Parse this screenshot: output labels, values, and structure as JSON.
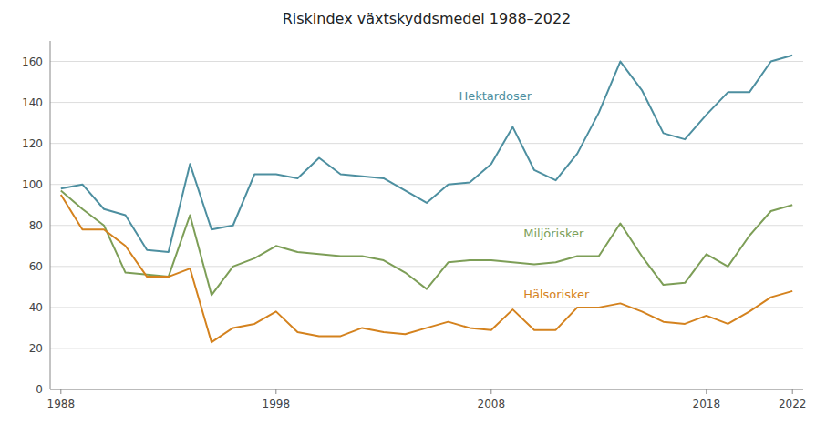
{
  "chart_data": {
    "type": "line",
    "title": "Riskindex växtskyddsmedel 1988–2022",
    "x": [
      1988,
      1989,
      1990,
      1991,
      1992,
      1993,
      1994,
      1995,
      1996,
      1997,
      1998,
      1999,
      2000,
      2001,
      2002,
      2003,
      2004,
      2005,
      2006,
      2007,
      2008,
      2009,
      2010,
      2011,
      2012,
      2013,
      2014,
      2015,
      2016,
      2017,
      2018,
      2019,
      2020,
      2021,
      2022
    ],
    "series": [
      {
        "name": "Hektardoser",
        "color": "#4d8fa0",
        "label_x": 2006.5,
        "label_y": 140,
        "values": [
          98,
          100,
          88,
          85,
          68,
          67,
          110,
          78,
          80,
          105,
          105,
          103,
          113,
          105,
          104,
          103,
          97,
          91,
          100,
          101,
          110,
          128,
          107,
          102,
          115,
          135,
          160,
          146,
          125,
          122,
          134,
          145,
          145,
          160,
          163
        ]
      },
      {
        "name": "Miljörisker",
        "color": "#7d9e57",
        "label_x": 2009.5,
        "label_y": 73,
        "values": [
          97,
          88,
          80,
          57,
          56,
          55,
          85,
          46,
          60,
          64,
          70,
          67,
          66,
          65,
          65,
          63,
          57,
          49,
          62,
          63,
          63,
          62,
          61,
          62,
          65,
          65,
          81,
          65,
          51,
          52,
          66,
          60,
          75,
          87,
          90
        ]
      },
      {
        "name": "Hälsorisker",
        "color": "#d4821e",
        "label_x": 2009.5,
        "label_y": 43,
        "values": [
          95,
          78,
          78,
          70,
          55,
          55,
          59,
          23,
          30,
          32,
          38,
          28,
          26,
          26,
          30,
          28,
          27,
          30,
          33,
          30,
          29,
          39,
          29,
          29,
          40,
          40,
          42,
          38,
          33,
          32,
          36,
          32,
          38,
          45,
          48
        ]
      }
    ],
    "xlim": [
      1987.5,
      2022.5
    ],
    "xticks": [
      1988,
      1998,
      2008,
      2018,
      2022
    ],
    "ylim": [
      0,
      170
    ],
    "yticks": [
      0,
      20,
      40,
      60,
      80,
      100,
      120,
      140,
      160
    ],
    "grid": true
  }
}
